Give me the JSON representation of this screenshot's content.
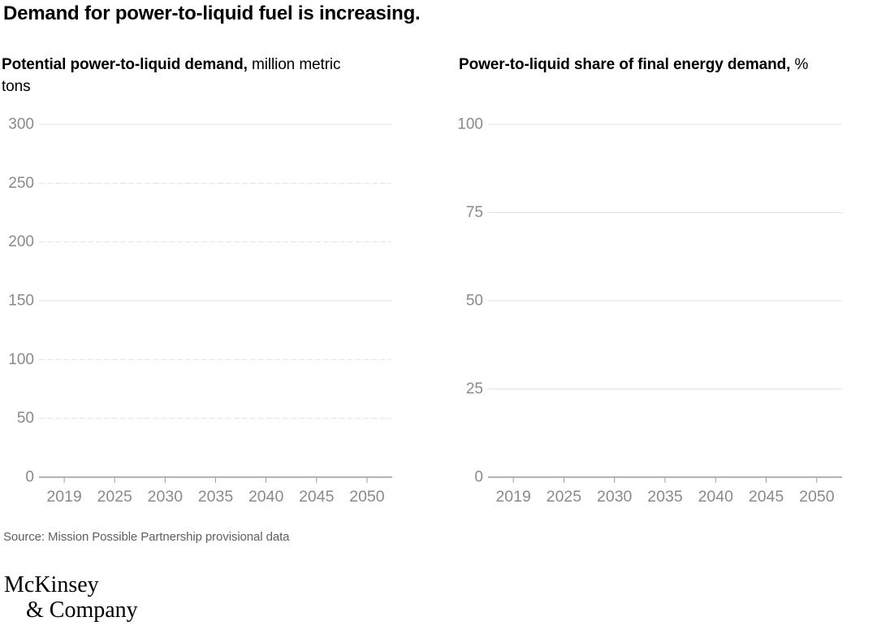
{
  "page": {
    "title": "Demand for power-to-liquid fuel is increasing.",
    "source": "Source: Mission Possible Partnership provisional data",
    "logo": {
      "line1": "McKinsey",
      "line2": "& Company"
    }
  },
  "colors": {
    "title_text": "#000000",
    "axis_label": "#8a8a8a",
    "gridline": "#e2e2e2",
    "axis_line": "#9c9c9c",
    "source_text": "#5f5f5f"
  },
  "chart_data": [
    {
      "type": "line",
      "title_bold": "Potential power-to-liquid demand,",
      "title_unit": " million metric tons",
      "categories": [
        "2019",
        "2025",
        "2030",
        "2035",
        "2040",
        "2045",
        "2050"
      ],
      "y_ticks": [
        300,
        250,
        200,
        150,
        100,
        50,
        0
      ],
      "ylim": [
        0,
        300
      ],
      "gridlines": {
        "solid_at": [
          300,
          150
        ],
        "dashed_at": [
          250,
          200,
          100,
          50
        ]
      },
      "legend": null,
      "series": []
    },
    {
      "type": "line",
      "title_bold": "Power-to-liquid share of final energy demand,",
      "title_unit": " %",
      "categories": [
        "2019",
        "2025",
        "2030",
        "2035",
        "2040",
        "2045",
        "2050"
      ],
      "y_ticks": [
        100,
        75,
        50,
        25,
        0
      ],
      "ylim": [
        0,
        100
      ],
      "gridlines": {
        "solid_at": [
          100,
          75,
          50,
          25
        ],
        "dashed_at": []
      },
      "legend": null,
      "series": []
    }
  ]
}
